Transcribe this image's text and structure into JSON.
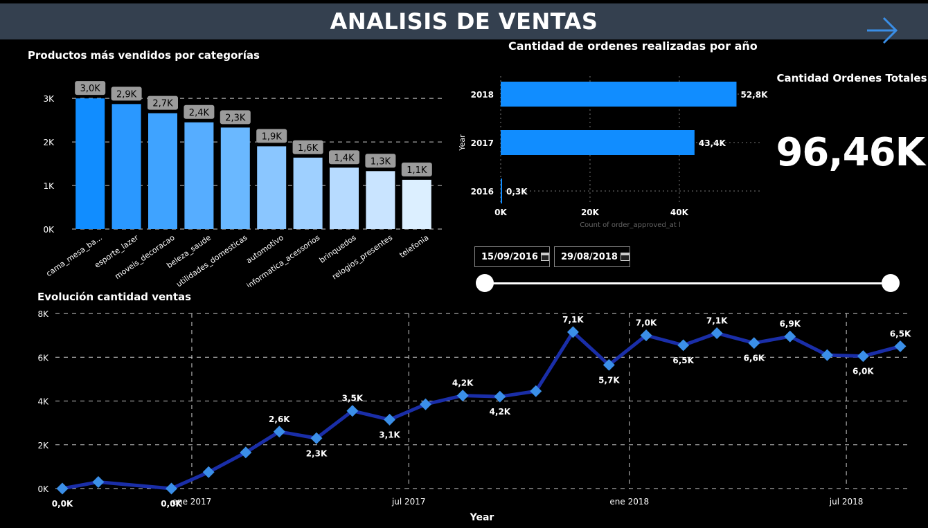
{
  "header": {
    "title": "ANALISIS DE VENTAS",
    "nav_icon": "arrow-right-icon"
  },
  "bar_chart": {
    "title": "Productos más vendidos por categorías",
    "yticks": [
      "0K",
      "1K",
      "2K",
      "3K"
    ]
  },
  "orders_chart": {
    "title": "Cantidad de ordenes realizadas por  año",
    "ylabel": "Year",
    "xlabel": "Count of order_approved_at l",
    "xticks": [
      "0K",
      "20K",
      "40K"
    ]
  },
  "kpi": {
    "label": "Cantidad Ordenes Totales",
    "value": "96,46K"
  },
  "date_filter": {
    "start": "15/09/2016",
    "end": "29/08/2018",
    "start_position": 0,
    "end_position": 1,
    "icon": "calendar-icon"
  },
  "line_chart": {
    "title": "Evolución cantidad ventas",
    "xlabel": "Year",
    "yticks": [
      "0K",
      "2K",
      "4K",
      "6K",
      "8K"
    ],
    "xticks": [
      "ene 2017",
      "jul 2017",
      "ene 2018",
      "jul 2018"
    ]
  },
  "chart_data": [
    {
      "type": "bar",
      "title": "Productos más vendidos por categorías",
      "categories": [
        "cama_mesa_ba...",
        "esporte_lazer",
        "moveis_decoracao",
        "beleza_saude",
        "utilidades_domesticas",
        "automotivo",
        "informatica_acessorios",
        "brinquedos",
        "relogios_presentes",
        "telefonia"
      ],
      "values": [
        3000,
        2870,
        2660,
        2450,
        2330,
        1900,
        1640,
        1410,
        1330,
        1130
      ],
      "data_labels": [
        "3,0K",
        "2,9K",
        "2,7K",
        "2,4K",
        "2,3K",
        "1,9K",
        "1,6K",
        "1,4K",
        "1,3K",
        "1,1K"
      ],
      "colors": [
        "#118dff",
        "#2a98ff",
        "#3fa3ff",
        "#56adff",
        "#6ab8ff",
        "#8ac6ff",
        "#9fd0ff",
        "#b7dbff",
        "#c9e4ff",
        "#dcefff"
      ],
      "ylim": [
        0,
        3400
      ],
      "grid": true
    },
    {
      "type": "bar",
      "orientation": "horizontal",
      "title": "Cantidad de ordenes realizadas por  año",
      "categories": [
        "2018",
        "2017",
        "2016"
      ],
      "values": [
        52800,
        43400,
        300
      ],
      "data_labels": [
        "52,8K",
        "43,4K",
        "0,3K"
      ],
      "xlim": [
        0,
        58000
      ],
      "xlabel": "Count of order_approved_at l",
      "ylabel": "Year",
      "color": "#118dff",
      "grid": true
    },
    {
      "type": "line",
      "title": "Evolución cantidad ventas",
      "xlabel": "Year",
      "x": [
        "2016-09-15",
        "2016-10-15",
        "2016-12-15",
        "2017-01-15",
        "2017-02-15",
        "2017-03-15",
        "2017-04-15",
        "2017-05-15",
        "2017-06-15",
        "2017-07-15",
        "2017-08-15",
        "2017-09-15",
        "2017-10-15",
        "2017-11-15",
        "2017-12-15",
        "2018-01-15",
        "2018-02-15",
        "2018-03-15",
        "2018-04-15",
        "2018-05-15",
        "2018-06-15",
        "2018-07-15",
        "2018-08-15"
      ],
      "y": [
        0,
        300,
        0,
        750,
        1650,
        2600,
        2300,
        3550,
        3150,
        3850,
        4250,
        4200,
        4450,
        7150,
        5650,
        7000,
        6550,
        7100,
        6650,
        6950,
        6100,
        6050,
        6500
      ],
      "point_labels": [
        "0,0K",
        "",
        "0,0K",
        "",
        "",
        "2,6K",
        "2,3K",
        "3,5K",
        "3,1K",
        "",
        "4,2K",
        "4,2K",
        "",
        "7,1K",
        "5,7K",
        "7,0K",
        "6,5K",
        "7,1K",
        "6,6K",
        "6,9K",
        "",
        "6,0K",
        "6,5K"
      ],
      "ylim": [
        0,
        8000
      ],
      "line_color": "#1a2ea8",
      "marker_color": "#3b8fe8",
      "grid": true
    }
  ]
}
